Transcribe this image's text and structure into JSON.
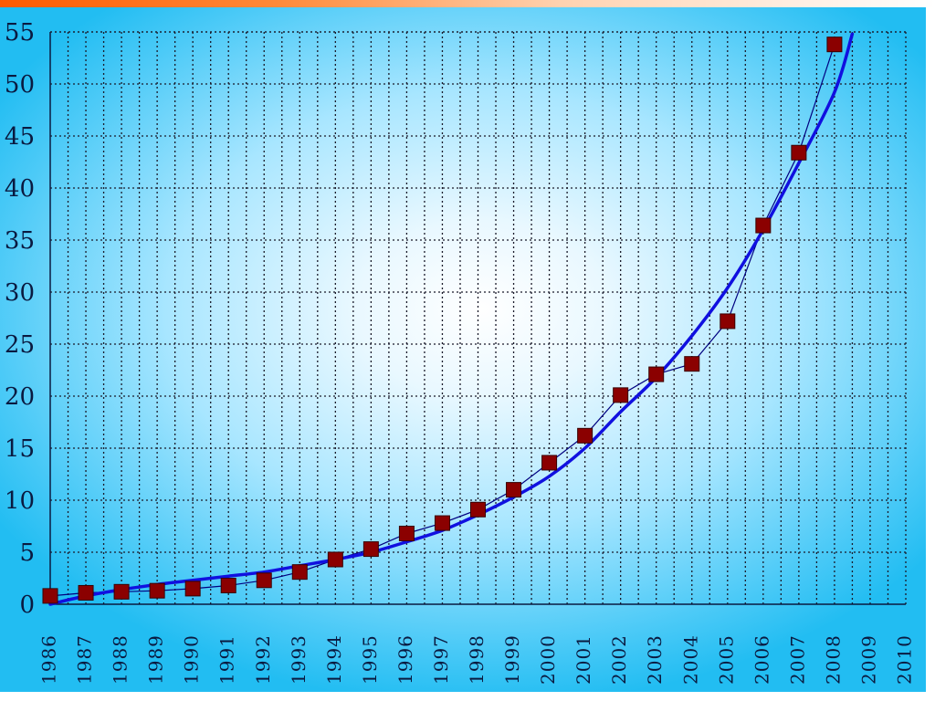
{
  "chart_data": {
    "type": "scatter",
    "title": "",
    "xlabel": "",
    "ylabel": "",
    "xlim": [
      1986,
      2010
    ],
    "ylim": [
      0,
      55
    ],
    "grid": true,
    "x_ticks": [
      "1986",
      "1987",
      "1988",
      "1989",
      "1990",
      "1991",
      "1992",
      "1993",
      "1994",
      "1995",
      "1996",
      "1997",
      "1998",
      "1999",
      "2000",
      "2001",
      "2002",
      "2003",
      "2004",
      "2005",
      "2006",
      "2007",
      "2008",
      "2009",
      "2010"
    ],
    "y_ticks": [
      "0",
      "5",
      "10",
      "15",
      "20",
      "25",
      "30",
      "35",
      "40",
      "45",
      "50",
      "55"
    ],
    "series": [
      {
        "style": "markers-with-thin-line",
        "color": "#8b0000",
        "line_color": "#000080",
        "x": [
          1986,
          1987,
          1988,
          1989,
          1990,
          1991,
          1992,
          1993,
          1994,
          1995,
          1996,
          1997,
          1998,
          1999,
          2000,
          2001,
          2002,
          2003,
          2004,
          2005,
          2006,
          2007,
          2008
        ],
        "y": [
          0.8,
          1.1,
          1.2,
          1.3,
          1.5,
          1.8,
          2.3,
          3.1,
          4.3,
          5.3,
          6.8,
          7.8,
          9.1,
          11.0,
          13.6,
          16.2,
          20.1,
          22.1,
          23.1,
          27.2,
          36.4,
          43.4,
          53.8
        ]
      },
      {
        "style": "fitted-curve",
        "color": "#1010e0",
        "x": [
          1986,
          1987,
          1988,
          1989,
          1990,
          1991,
          1992,
          1993,
          1994,
          1995,
          1996,
          1997,
          1998,
          1999,
          2000,
          2001,
          2002,
          2003,
          2004,
          2005,
          2006,
          2007,
          2008,
          2008.5
        ],
        "y": [
          0.0,
          0.8,
          1.4,
          1.9,
          2.3,
          2.7,
          3.1,
          3.7,
          4.3,
          5.0,
          6.0,
          7.1,
          8.6,
          10.3,
          12.3,
          15.0,
          18.5,
          21.8,
          25.8,
          30.4,
          36.0,
          42.4,
          49.2,
          54.8
        ]
      }
    ]
  }
}
